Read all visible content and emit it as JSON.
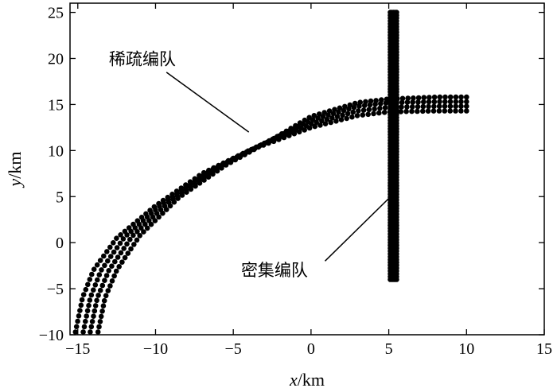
{
  "chart_data": {
    "type": "scatter",
    "title": "",
    "xlabel_var": "x",
    "xlabel_unit": "/km",
    "ylabel_var": "y",
    "ylabel_unit": "/km",
    "xlim": [
      -15.5,
      15
    ],
    "ylim": [
      -10,
      26
    ],
    "xticks": [
      -15,
      -10,
      -5,
      0,
      5,
      10,
      15
    ],
    "yticks": [
      -10,
      -5,
      0,
      5,
      10,
      15,
      20,
      25
    ],
    "xtick_labels": [
      "−15",
      "−10",
      "−5",
      "0",
      "5",
      "10",
      "15"
    ],
    "ytick_labels": [
      "−10",
      "−5",
      "0",
      "5",
      "10",
      "15",
      "20",
      "25"
    ],
    "grid": false,
    "marker_color": "#000000",
    "series": [
      {
        "formation": "sparse",
        "arc_paths": [
          [
            [
              -15.15,
              -9.7
            ],
            [
              -14.7,
              -6.0
            ],
            [
              -14.0,
              -3.0
            ],
            [
              -12.5,
              0.5
            ],
            [
              -10.0,
              4.0
            ],
            [
              -7.0,
              7.5
            ],
            [
              -4.0,
              10.0
            ],
            [
              0.0,
              12.5
            ],
            [
              3.0,
              13.8
            ],
            [
              5.0,
              14.2
            ],
            [
              8.0,
              14.3
            ],
            [
              10.0,
              14.3
            ]
          ],
          [
            [
              -14.65,
              -9.7
            ],
            [
              -14.2,
              -6.0
            ],
            [
              -13.5,
              -3.0
            ],
            [
              -12.0,
              0.6
            ],
            [
              -9.5,
              4.3
            ],
            [
              -6.5,
              7.8
            ],
            [
              -3.5,
              10.4
            ],
            [
              0.0,
              12.9
            ],
            [
              3.0,
              14.3
            ],
            [
              5.0,
              14.7
            ],
            [
              8.0,
              14.8
            ],
            [
              10.0,
              14.8
            ]
          ],
          [
            [
              -14.2,
              -9.7
            ],
            [
              -13.75,
              -6.0
            ],
            [
              -13.0,
              -3.0
            ],
            [
              -11.5,
              0.7
            ],
            [
              -9.0,
              4.6
            ],
            [
              -6.0,
              8.1
            ],
            [
              -3.0,
              10.8
            ],
            [
              0.0,
              13.3
            ],
            [
              3.0,
              14.8
            ],
            [
              5.0,
              15.2
            ],
            [
              8.0,
              15.3
            ],
            [
              10.0,
              15.3
            ]
          ],
          [
            [
              -13.7,
              -9.7
            ],
            [
              -13.25,
              -6.0
            ],
            [
              -12.5,
              -3.0
            ],
            [
              -11.0,
              0.8
            ],
            [
              -8.5,
              4.9
            ],
            [
              -5.5,
              8.4
            ],
            [
              -2.5,
              11.2
            ],
            [
              0.0,
              13.7
            ],
            [
              3.0,
              15.2
            ],
            [
              5.0,
              15.6
            ],
            [
              8.0,
              15.8
            ],
            [
              10.0,
              15.8
            ]
          ]
        ],
        "marker_count_per_path": 90
      },
      {
        "formation": "dense",
        "columns_x": [
          5.1,
          5.2,
          5.3,
          5.4,
          5.5
        ],
        "y_range": [
          -4.0,
          25.0
        ],
        "marker_count_per_column": 95
      }
    ],
    "annotations": [
      {
        "text": "稀疏编队",
        "label_at": [
          -13.0,
          19.3
        ],
        "line_from": [
          -9.3,
          18.5
        ],
        "line_to": [
          -4.0,
          12.0
        ]
      },
      {
        "text": "密集编队",
        "label_at": [
          -4.5,
          -3.6
        ],
        "line_from": [
          0.9,
          -2.0
        ],
        "line_to": [
          5.0,
          4.8
        ]
      }
    ]
  }
}
